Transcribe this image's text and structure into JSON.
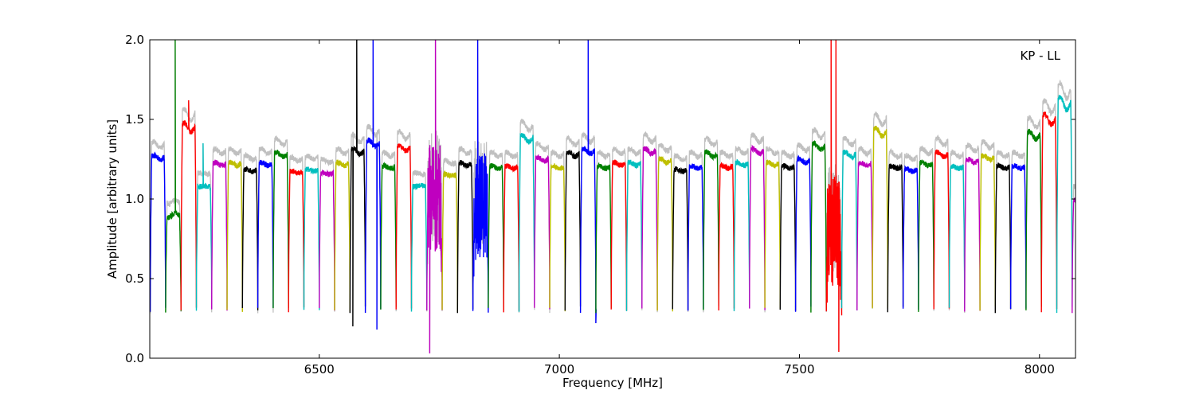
{
  "chart_data": {
    "type": "line",
    "title": "",
    "xlabel": "Frequency [MHz]",
    "ylabel": "Amplitude [arbitrary units]",
    "xlim": [
      6147,
      8075
    ],
    "ylim": [
      0.0,
      2.0
    ],
    "xticks": [
      6500,
      7000,
      7500,
      8000
    ],
    "xtick_labels": [
      "6500",
      "7000",
      "7500",
      "8000"
    ],
    "yticks": [
      0.0,
      0.5,
      1.0,
      1.5,
      2.0
    ],
    "ytick_labels": [
      "0.0",
      "0.5",
      "1.0",
      "1.5",
      "2.0"
    ],
    "annotation": "KP - LL",
    "grid": false,
    "legend": "none",
    "color_cycle": [
      "#0000ff",
      "#008000",
      "#ff0000",
      "#00bfbf",
      "#bf00bf",
      "#bfbf00",
      "#000000"
    ],
    "background_color": "#c0c0c0",
    "channel_width_mhz": 32,
    "channels": [
      {
        "start": 6148,
        "level": 1.26
      },
      {
        "start": 6180,
        "level": 0.9,
        "spikes": [
          [
            6200,
            2.0
          ]
        ]
      },
      {
        "start": 6212,
        "level": 1.45,
        "spikes": [
          [
            6228,
            1.62
          ]
        ]
      },
      {
        "start": 6244,
        "level": 1.08,
        "spikes": [
          [
            6258,
            1.35
          ]
        ]
      },
      {
        "start": 6276,
        "level": 1.22
      },
      {
        "start": 6308,
        "level": 1.22
      },
      {
        "start": 6340,
        "level": 1.18
      },
      {
        "start": 6372,
        "level": 1.22
      },
      {
        "start": 6404,
        "level": 1.28
      },
      {
        "start": 6436,
        "level": 1.17
      },
      {
        "start": 6468,
        "level": 1.18
      },
      {
        "start": 6500,
        "level": 1.16
      },
      {
        "start": 6532,
        "level": 1.22
      },
      {
        "start": 6564,
        "level": 1.3,
        "spikes": [
          [
            6578,
            2.0
          ],
          [
            6570,
            0.2
          ]
        ]
      },
      {
        "start": 6596,
        "level": 1.35,
        "spikes": [
          [
            6612,
            2.0
          ],
          [
            6620,
            0.18
          ]
        ]
      },
      {
        "start": 6628,
        "level": 1.2
      },
      {
        "start": 6660,
        "level": 1.32
      },
      {
        "start": 6692,
        "level": 1.08
      },
      {
        "start": 6724,
        "level": 1.0,
        "noise": true,
        "spikes": [
          [
            6742,
            2.0
          ],
          [
            6730,
            0.03
          ]
        ]
      },
      {
        "start": 6756,
        "level": 1.15
      },
      {
        "start": 6788,
        "level": 1.22
      },
      {
        "start": 6820,
        "level": 0.95,
        "noise": true,
        "spikes": [
          [
            6830,
            2.0
          ]
        ]
      },
      {
        "start": 6852,
        "level": 1.2
      },
      {
        "start": 6884,
        "level": 1.2
      },
      {
        "start": 6916,
        "level": 1.38
      },
      {
        "start": 6948,
        "level": 1.25
      },
      {
        "start": 6980,
        "level": 1.2
      },
      {
        "start": 7012,
        "level": 1.28
      },
      {
        "start": 7044,
        "level": 1.3,
        "spikes": [
          [
            7060,
            2.0
          ],
          [
            7076,
            0.22
          ]
        ]
      },
      {
        "start": 7076,
        "level": 1.2
      },
      {
        "start": 7108,
        "level": 1.22
      },
      {
        "start": 7140,
        "level": 1.22
      },
      {
        "start": 7172,
        "level": 1.3
      },
      {
        "start": 7204,
        "level": 1.24
      },
      {
        "start": 7236,
        "level": 1.18
      },
      {
        "start": 7268,
        "level": 1.2
      },
      {
        "start": 7300,
        "level": 1.28
      },
      {
        "start": 7332,
        "level": 1.2
      },
      {
        "start": 7364,
        "level": 1.22
      },
      {
        "start": 7396,
        "level": 1.3
      },
      {
        "start": 7428,
        "level": 1.22
      },
      {
        "start": 7460,
        "level": 1.2
      },
      {
        "start": 7492,
        "level": 1.24
      },
      {
        "start": 7524,
        "level": 1.33
      },
      {
        "start": 7556,
        "level": 0.8,
        "noise": true,
        "spikes": [
          [
            7566,
            2.0
          ],
          [
            7576,
            2.0
          ],
          [
            7582,
            0.04
          ]
        ]
      },
      {
        "start": 7588,
        "level": 1.28
      },
      {
        "start": 7620,
        "level": 1.22
      },
      {
        "start": 7652,
        "level": 1.42
      },
      {
        "start": 7684,
        "level": 1.2
      },
      {
        "start": 7716,
        "level": 1.18
      },
      {
        "start": 7748,
        "level": 1.22
      },
      {
        "start": 7780,
        "level": 1.28
      },
      {
        "start": 7812,
        "level": 1.2
      },
      {
        "start": 7844,
        "level": 1.24
      },
      {
        "start": 7876,
        "level": 1.26
      },
      {
        "start": 7908,
        "level": 1.2
      },
      {
        "start": 7940,
        "level": 1.2
      },
      {
        "start": 7972,
        "level": 1.4
      },
      {
        "start": 8004,
        "level": 1.5
      },
      {
        "start": 8036,
        "level": 1.6
      },
      {
        "start": 8068,
        "level": 1.0
      }
    ]
  }
}
